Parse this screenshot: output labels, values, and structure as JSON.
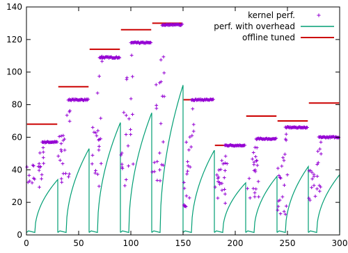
{
  "chart_data": {
    "type": "scatter",
    "title": "",
    "xlabel": "",
    "ylabel": "",
    "xlim": [
      0,
      300
    ],
    "ylim": [
      0,
      140
    ],
    "x_ticks": [
      0,
      50,
      100,
      150,
      200,
      250,
      300
    ],
    "y_ticks": [
      0,
      20,
      40,
      60,
      80,
      100,
      120,
      140
    ],
    "grid": false,
    "legend_position": "top-right",
    "series": [
      {
        "name": "kernel perf.",
        "marker": "plus",
        "color": "#9400d3",
        "segments": [
          {
            "x_start": 0,
            "x_end": 30,
            "plateau": 57,
            "plateau_from": 15,
            "low": 28
          },
          {
            "x_start": 30,
            "x_end": 60,
            "plateau": 83,
            "plateau_from": 40,
            "low": 32
          },
          {
            "x_start": 60,
            "x_end": 90,
            "plateau": 109,
            "plateau_from": 70,
            "low": 28
          },
          {
            "x_start": 90,
            "x_end": 120,
            "plateau": 118,
            "plateau_from": 100,
            "low": 30
          },
          {
            "x_start": 120,
            "x_end": 150,
            "plateau": 129,
            "plateau_from": 130,
            "low": 32
          },
          {
            "x_start": 150,
            "x_end": 180,
            "plateau": 83,
            "plateau_from": 158,
            "low": 15
          },
          {
            "x_start": 180,
            "x_end": 210,
            "plateau": 55,
            "plateau_from": 190,
            "low": 18
          },
          {
            "x_start": 210,
            "x_end": 240,
            "plateau": 59,
            "plateau_from": 220,
            "low": 22
          },
          {
            "x_start": 240,
            "x_end": 270,
            "plateau": 66,
            "plateau_from": 248,
            "low": 12
          },
          {
            "x_start": 270,
            "x_end": 300,
            "plateau": 60,
            "plateau_from": 280,
            "low": 20
          }
        ]
      },
      {
        "name": "perf. with overhead",
        "type": "line",
        "color": "#009e73",
        "segments": [
          {
            "x_start": 0,
            "x_end": 30,
            "peak": 34,
            "floor": 1.5
          },
          {
            "x_start": 30,
            "x_end": 60,
            "peak": 53,
            "floor": 1.5
          },
          {
            "x_start": 60,
            "x_end": 90,
            "peak": 69,
            "floor": 1.5
          },
          {
            "x_start": 90,
            "x_end": 120,
            "peak": 75,
            "floor": 1.5
          },
          {
            "x_start": 120,
            "x_end": 150,
            "peak": 92,
            "floor": 1.5
          },
          {
            "x_start": 150,
            "x_end": 180,
            "peak": 52,
            "floor": 1.5
          },
          {
            "x_start": 180,
            "x_end": 210,
            "peak": 32,
            "floor": 1.5
          },
          {
            "x_start": 210,
            "x_end": 240,
            "peak": 36,
            "floor": 1.5
          },
          {
            "x_start": 240,
            "x_end": 270,
            "peak": 42,
            "floor": 1.5
          },
          {
            "x_start": 270,
            "x_end": 300,
            "peak": 37,
            "floor": 1.5
          }
        ]
      },
      {
        "name": "offline tuned",
        "type": "line",
        "color": "#cc0000",
        "segments": [
          {
            "x_start": 0,
            "x_end": 30,
            "y": 68
          },
          {
            "x_start": 30,
            "x_end": 60,
            "y": 91
          },
          {
            "x_start": 60,
            "x_end": 90,
            "y": 114
          },
          {
            "x_start": 90,
            "x_end": 120,
            "y": 126
          },
          {
            "x_start": 120,
            "x_end": 150,
            "y": 130
          },
          {
            "x_start": 150,
            "x_end": 180,
            "y": 83
          },
          {
            "x_start": 180,
            "x_end": 210,
            "y": 55
          },
          {
            "x_start": 210,
            "x_end": 240,
            "y": 73
          },
          {
            "x_start": 240,
            "x_end": 270,
            "y": 70
          },
          {
            "x_start": 270,
            "x_end": 300,
            "y": 81
          }
        ]
      }
    ]
  }
}
